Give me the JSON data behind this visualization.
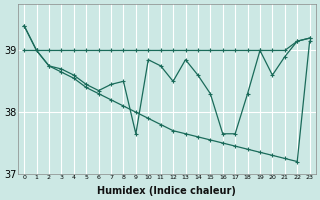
{
  "xlabel": "Humidex (Indice chaleur)",
  "background_color": "#cce8e4",
  "line_color": "#1a6b5a",
  "grid_color": "#ffffff",
  "xlim": [
    -0.5,
    23.5
  ],
  "ylim": [
    37.0,
    39.75
  ],
  "yticks": [
    37,
    38,
    39
  ],
  "xticks": [
    0,
    1,
    2,
    3,
    4,
    5,
    6,
    7,
    8,
    9,
    10,
    11,
    12,
    13,
    14,
    15,
    16,
    17,
    18,
    19,
    20,
    21,
    22,
    23
  ],
  "line_flat_y": [
    39.0,
    39.0,
    39.0,
    39.0,
    39.0,
    39.0,
    39.0,
    39.0,
    39.0,
    39.0,
    39.0,
    39.0,
    39.0,
    39.0,
    39.0,
    39.0,
    39.0,
    39.0,
    39.0,
    39.0,
    39.0,
    39.0,
    39.15,
    39.2
  ],
  "line_diagonal_y": [
    39.4,
    39.0,
    38.75,
    38.65,
    38.55,
    38.4,
    38.3,
    38.2,
    38.1,
    38.0,
    37.9,
    37.8,
    37.7,
    37.65,
    37.6,
    37.55,
    37.5,
    37.45,
    37.4,
    37.35,
    37.3,
    37.25,
    37.2,
    39.15
  ],
  "line_wavy_y": [
    39.4,
    39.0,
    38.75,
    38.7,
    38.6,
    38.45,
    38.35,
    38.45,
    38.5,
    37.65,
    38.85,
    38.75,
    38.5,
    38.85,
    38.6,
    38.3,
    37.65,
    37.65,
    38.3,
    39.0,
    38.6,
    38.9,
    39.15,
    39.2
  ]
}
